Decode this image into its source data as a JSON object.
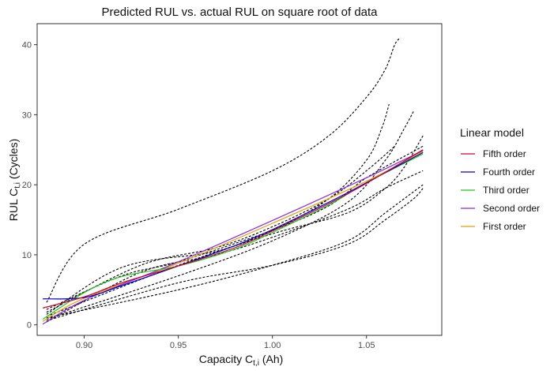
{
  "chart_data": {
    "type": "line",
    "title": "Predicted RUL vs. actual RUL on square root of data",
    "xlabel": {
      "main": "Capacity C",
      "sub": "t,i",
      "tail": " (Ah)"
    },
    "ylabel": {
      "main": "RUL C",
      "sub": "t,i",
      "tail": " (Cycles)"
    },
    "xlim": [
      0.875,
      1.09
    ],
    "ylim": [
      -1.5,
      43
    ],
    "x_ticks": [
      0.9,
      0.95,
      1.0,
      1.05
    ],
    "x_tick_labels": [
      "0.90",
      "0.95",
      "1.00",
      "1.05"
    ],
    "y_ticks": [
      0,
      10,
      20,
      30,
      40
    ],
    "y_tick_labels": [
      "0",
      "10",
      "20",
      "30",
      "40"
    ],
    "grid": false,
    "legend": {
      "title": "Linear model",
      "placement": "right",
      "entries": [
        "Fifth order",
        "Fourth order",
        "Third order",
        "Second order",
        "First order"
      ]
    },
    "series": [
      {
        "name": "First order",
        "color": "#e5a100",
        "x": [
          0.878,
          0.9,
          0.95,
          1.0,
          1.05,
          1.08
        ],
        "y": [
          0.5,
          3.8,
          8.8,
          14.5,
          20.5,
          24.8
        ]
      },
      {
        "name": "Second order",
        "color": "#8a2be2",
        "x": [
          0.878,
          0.9,
          0.95,
          1.0,
          1.05,
          1.08
        ],
        "y": [
          0.1,
          3.5,
          9.0,
          14.9,
          21.0,
          24.9
        ]
      },
      {
        "name": "Third order",
        "color": "#1ec81e",
        "x": [
          0.878,
          0.9,
          0.92,
          0.95,
          0.98,
          1.0,
          1.03,
          1.05,
          1.08
        ],
        "y": [
          0.8,
          4.6,
          6.9,
          8.4,
          10.8,
          13.2,
          17.1,
          20.3,
          24.4
        ]
      },
      {
        "name": "Fourth order",
        "color": "#0000cc",
        "x": [
          0.878,
          0.9,
          0.92,
          0.95,
          0.98,
          1.0,
          1.03,
          1.05,
          1.08
        ],
        "y": [
          3.7,
          3.9,
          5.6,
          8.4,
          11.3,
          13.6,
          17.5,
          20.3,
          24.6
        ]
      },
      {
        "name": "Fifth order",
        "color": "#cc0033",
        "x": [
          0.878,
          0.9,
          0.92,
          0.95,
          0.98,
          1.0,
          1.03,
          1.05,
          1.08
        ],
        "y": [
          2.4,
          4.0,
          6.0,
          8.4,
          11.0,
          13.4,
          17.3,
          20.2,
          25.0
        ]
      }
    ],
    "actual_curves": [
      {
        "x": [
          0.88,
          0.9,
          0.95,
          1.0,
          1.03,
          1.05,
          1.06,
          1.065,
          1.068
        ],
        "y": [
          3.2,
          11.5,
          16.5,
          22.0,
          27.0,
          32.5,
          36.5,
          40.0,
          41.0
        ]
      },
      {
        "x": [
          0.88,
          0.92,
          0.97,
          1.0,
          1.03,
          1.05,
          1.058,
          1.062
        ],
        "y": [
          1.5,
          8.2,
          10.5,
          13.5,
          18.0,
          23.5,
          28.0,
          31.5
        ]
      },
      {
        "x": [
          0.88,
          0.95,
          1.0,
          1.04,
          1.06,
          1.07,
          1.075
        ],
        "y": [
          0.8,
          7.0,
          12.0,
          17.5,
          23.5,
          28.0,
          30.5
        ]
      },
      {
        "x": [
          0.88,
          0.95,
          1.0,
          1.04,
          1.06,
          1.07,
          1.08
        ],
        "y": [
          1.2,
          8.5,
          13.0,
          16.0,
          19.5,
          22.5,
          27.0
        ]
      },
      {
        "x": [
          0.88,
          0.95,
          1.0,
          1.04,
          1.06,
          1.075,
          1.08
        ],
        "y": [
          1.0,
          5.0,
          8.5,
          12.0,
          16.0,
          19.0,
          20.0
        ]
      },
      {
        "x": [
          0.88,
          0.95,
          1.0,
          1.04,
          1.06,
          1.075,
          1.08
        ],
        "y": [
          0.6,
          6.0,
          8.5,
          11.5,
          15.0,
          18.0,
          19.5
        ]
      },
      {
        "x": [
          0.88,
          0.93,
          0.97,
          1.0,
          1.04,
          1.06,
          1.08
        ],
        "y": [
          0.4,
          7.5,
          10.0,
          12.5,
          16.5,
          19.5,
          22.0
        ]
      },
      {
        "x": [
          0.88,
          0.93,
          0.97,
          1.0,
          1.03,
          1.05,
          1.065
        ],
        "y": [
          1.8,
          8.5,
          11.0,
          14.0,
          18.0,
          22.0,
          25.5
        ]
      },
      {
        "x": [
          0.88,
          0.92,
          0.95,
          1.0,
          1.03,
          1.05,
          1.08
        ],
        "y": [
          2.2,
          7.0,
          9.0,
          13.5,
          17.0,
          21.0,
          25.5
        ]
      }
    ]
  }
}
